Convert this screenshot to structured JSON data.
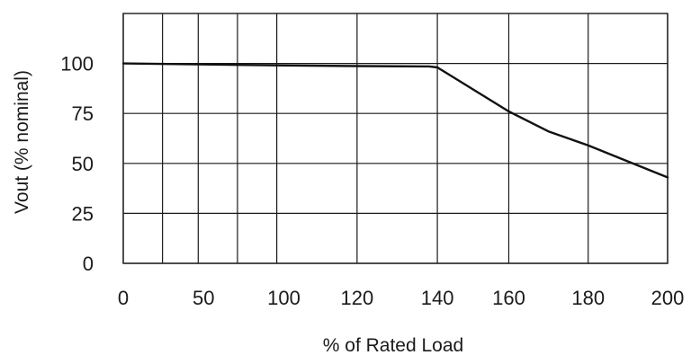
{
  "chart_data": {
    "type": "line",
    "title": "",
    "xlabel": "% of Rated Load",
    "ylabel": "Vout (% nominal)",
    "x_tick_labels": [
      "0",
      "50",
      "100",
      "120",
      "140",
      "160",
      "180",
      "200"
    ],
    "y_tick_labels": [
      "0",
      "25",
      "50",
      "75",
      "100"
    ],
    "y_ticks": [
      0,
      25,
      50,
      75,
      100
    ],
    "ylim": [
      0,
      125
    ],
    "xlim": [
      0,
      200
    ],
    "grid": true,
    "legend": "none",
    "series": [
      {
        "x": [
          0,
          50,
          100,
          120,
          138,
          140,
          150,
          160,
          170,
          180,
          190,
          200
        ],
        "values": [
          100,
          99.5,
          99,
          98.7,
          98.5,
          98,
          87,
          76,
          66,
          59,
          51,
          43
        ]
      }
    ]
  }
}
